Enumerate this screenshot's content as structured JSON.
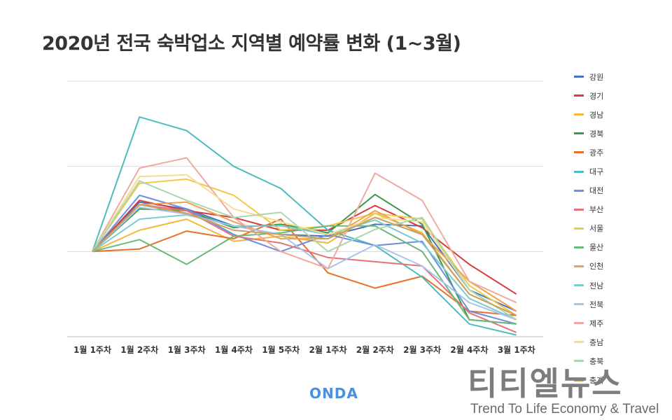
{
  "title": "2020년 전국 숙박업소 지역별 예약률 변화 (1~3월)",
  "brand": "ONDA",
  "watermark": {
    "main": "티티엘뉴스",
    "sub": "Trend To Life Economy & Travel"
  },
  "chart_data": {
    "type": "line",
    "title": "2020년 전국 숙박업소 지역별 예약률 변화 (1~3월)",
    "categories": [
      "1월 1주차",
      "1월 2주차",
      "1월 3주차",
      "1월 4주차",
      "1월 5주차",
      "2월 1주차",
      "2월 2주차",
      "2월 3주차",
      "2월 4주차",
      "3월 1주차"
    ],
    "ylim": [
      -100,
      200
    ],
    "gridlines": [
      -100,
      0,
      100,
      200
    ],
    "grid": true,
    "legend": "right",
    "series": [
      {
        "name": "강원",
        "color": "#4472c4",
        "values": [
          0,
          58,
          50,
          30,
          20,
          18,
          32,
          30,
          -45,
          -70
        ]
      },
      {
        "name": "경기",
        "color": "#d83b3b",
        "values": [
          0,
          60,
          48,
          40,
          25,
          25,
          54,
          28,
          -15,
          -50
        ]
      },
      {
        "name": "경남",
        "color": "#f0b93a",
        "values": [
          0,
          25,
          38,
          12,
          18,
          10,
          45,
          22,
          -50,
          -75
        ]
      },
      {
        "name": "경북",
        "color": "#3a9a4a",
        "values": [
          0,
          50,
          48,
          28,
          32,
          22,
          67,
          32,
          -80,
          -85
        ]
      },
      {
        "name": "광주",
        "color": "#e8702a",
        "values": [
          0,
          3,
          24,
          15,
          38,
          -25,
          -43,
          -29,
          -70,
          -75
        ]
      },
      {
        "name": "대구",
        "color": "#4bbdbe",
        "values": [
          0,
          158,
          142,
          100,
          74,
          25,
          7,
          -30,
          -85,
          -98
        ]
      },
      {
        "name": "대전",
        "color": "#6a8ee0",
        "values": [
          0,
          66,
          50,
          20,
          0,
          20,
          7,
          12,
          -70,
          -85
        ]
      },
      {
        "name": "부산",
        "color": "#e57373",
        "values": [
          0,
          55,
          48,
          18,
          10,
          -7,
          -12,
          -17,
          -72,
          -95
        ]
      },
      {
        "name": "서울",
        "color": "#f0c84a",
        "values": [
          0,
          80,
          85,
          66,
          25,
          30,
          45,
          38,
          -40,
          -75
        ]
      },
      {
        "name": "울산",
        "color": "#6ab87a",
        "values": [
          0,
          14,
          -15,
          18,
          22,
          30,
          30,
          0,
          -80,
          -85
        ]
      },
      {
        "name": "인천",
        "color": "#f0a050",
        "values": [
          0,
          55,
          58,
          35,
          15,
          15,
          48,
          20,
          -35,
          -70
        ]
      },
      {
        "name": "전남",
        "color": "#7fcad0",
        "values": [
          0,
          38,
          43,
          30,
          30,
          20,
          37,
          10,
          -55,
          -80
        ]
      },
      {
        "name": "전북",
        "color": "#a8c4ec",
        "values": [
          0,
          52,
          44,
          30,
          20,
          -20,
          8,
          -17,
          -60,
          -80
        ]
      },
      {
        "name": "제주",
        "color": "#f0a8a0",
        "values": [
          0,
          98,
          110,
          40,
          0,
          -20,
          92,
          60,
          -35,
          -60
        ]
      },
      {
        "name": "충남",
        "color": "#f5dd90",
        "values": [
          0,
          88,
          90,
          50,
          35,
          20,
          40,
          35,
          -45,
          -80
        ]
      },
      {
        "name": "충북",
        "color": "#a8d8b0",
        "values": [
          0,
          83,
          60,
          40,
          46,
          0,
          26,
          40,
          -45,
          -80
        ]
      },
      {
        "name": "충계",
        "color": "#c8a060",
        "values": [
          0,
          55,
          45,
          25,
          20,
          15,
          40,
          20,
          -50,
          -75
        ]
      }
    ]
  }
}
